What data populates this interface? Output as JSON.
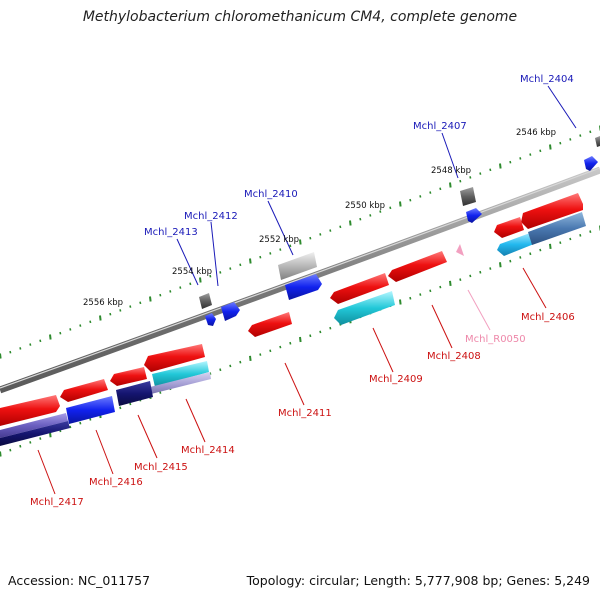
{
  "title": "Methylobacterium chloromethanicum CM4, complete genome",
  "footer": {
    "accession": "Accession: NC_011757",
    "summary": "Topology: circular; Length: 5,777,908 bp; Genes: 5,249"
  },
  "colors": {
    "forward_gene_label": "#1a1ab8",
    "reverse_gene_label": "#cc1111",
    "rna_gene_label": "#ee88aa",
    "backbone": "#8c8c8c",
    "tick": "#2e8b2e",
    "cds_red": "#ee1111",
    "cds_blue": "#1122ee",
    "cds_navy": "#151570",
    "cds_cyan": "#22c8d8",
    "cds_gray": "#909090",
    "cds_purple": "#6a5fc0"
  },
  "scale_labels": [
    "2546 kbp",
    "2548 kbp",
    "2550 kbp",
    "2552 kbp",
    "2554 kbp",
    "2556 kbp"
  ],
  "genes_top": [
    "Mchl_2404",
    "Mchl_2407",
    "Mchl_2410",
    "Mchl_2412",
    "Mchl_2413"
  ],
  "genes_bottom": [
    "Mchl_2406",
    "Mchl_R0050",
    "Mchl_2408",
    "Mchl_2409",
    "Mchl_2411",
    "Mchl_2414",
    "Mchl_2415",
    "Mchl_2416",
    "Mchl_2417"
  ]
}
